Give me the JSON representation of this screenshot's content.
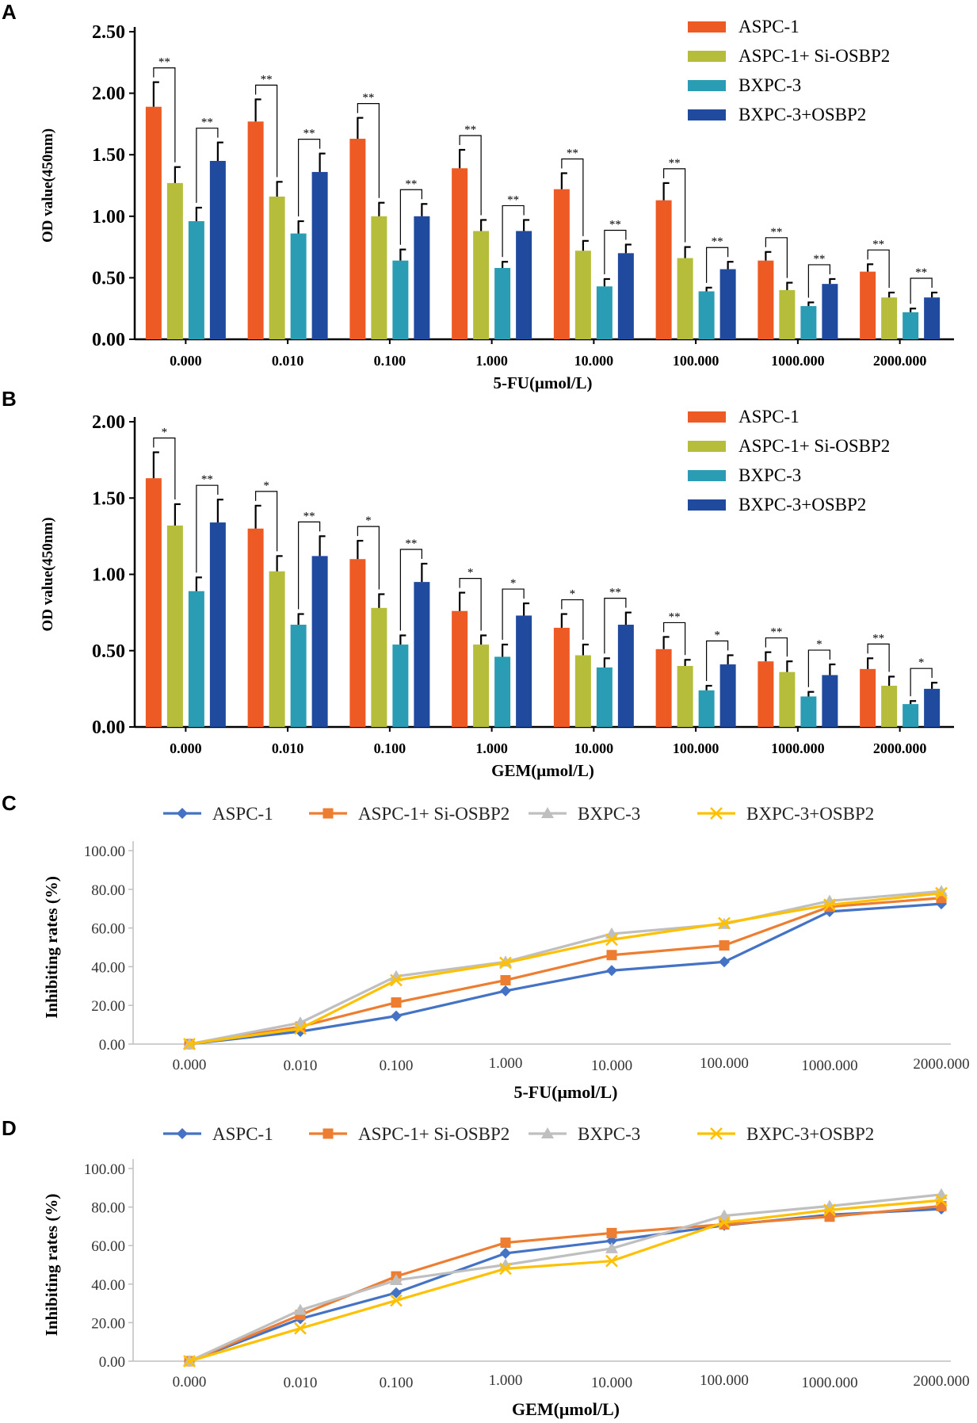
{
  "panels": [
    "A",
    "B",
    "C",
    "D"
  ],
  "colors": {
    "aspc": "#EE5A24",
    "aspc_si": "#B5BD3B",
    "bxpc": "#2A9DB4",
    "bxpc_osbp2": "#1F4A9E",
    "line_aspc": "#4472C4",
    "line_aspc_si": "#ED7D31",
    "line_bxpc": "#BFBFBF",
    "line_bxpc_osbp2": "#FFC000"
  },
  "chart_data": [
    {
      "panel": "A",
      "type": "bar",
      "title": "",
      "xlabel": "5-FU(μmol/L)",
      "ylabel": "OD value(450nm)",
      "ylim": [
        0,
        2.5
      ],
      "yticks": [
        "0.00",
        "0.50",
        "1.00",
        "1.50",
        "2.00",
        "2.50"
      ],
      "categories": [
        "0.000",
        "0.010",
        "0.100",
        "1.000",
        "10.000",
        "100.000",
        "1000.000",
        "2000.000"
      ],
      "series": [
        {
          "name": "ASPC-1",
          "values": [
            1.89,
            1.77,
            1.63,
            1.39,
            1.22,
            1.13,
            0.64,
            0.55
          ],
          "errors": [
            0.2,
            0.18,
            0.17,
            0.15,
            0.13,
            0.14,
            0.07,
            0.06
          ]
        },
        {
          "name": "ASPC-1+ Si-OSBP2",
          "values": [
            1.27,
            1.16,
            1.0,
            0.88,
            0.72,
            0.66,
            0.4,
            0.34
          ],
          "errors": [
            0.13,
            0.12,
            0.11,
            0.09,
            0.08,
            0.09,
            0.06,
            0.04
          ]
        },
        {
          "name": "BXPC-3",
          "values": [
            0.96,
            0.86,
            0.64,
            0.58,
            0.43,
            0.39,
            0.27,
            0.22
          ],
          "errors": [
            0.11,
            0.1,
            0.09,
            0.05,
            0.06,
            0.03,
            0.03,
            0.03
          ]
        },
        {
          "name": "BXPC-3+OSBP2",
          "values": [
            1.45,
            1.36,
            1.0,
            0.88,
            0.7,
            0.57,
            0.45,
            0.34
          ],
          "errors": [
            0.15,
            0.15,
            0.1,
            0.09,
            0.07,
            0.06,
            0.04,
            0.04
          ]
        }
      ],
      "significance": [
        {
          "left": "**",
          "right": "**"
        },
        {
          "left": "**",
          "right": "**"
        },
        {
          "left": "**",
          "right": "**"
        },
        {
          "left": "**",
          "right": "**"
        },
        {
          "left": "**",
          "right": "**"
        },
        {
          "left": "**",
          "right": "**"
        },
        {
          "left": "**",
          "right": "**"
        },
        {
          "left": "**",
          "right": "**"
        }
      ]
    },
    {
      "panel": "B",
      "type": "bar",
      "title": "",
      "xlabel": "GEM(μmol/L)",
      "ylabel": "OD value(450nm)",
      "ylim": [
        0,
        2.0
      ],
      "yticks": [
        "0.00",
        "0.50",
        "1.00",
        "1.50",
        "2.00"
      ],
      "categories": [
        "0.000",
        "0.010",
        "0.100",
        "1.000",
        "10.000",
        "100.000",
        "1000.000",
        "2000.000"
      ],
      "series": [
        {
          "name": "ASPC-1",
          "values": [
            1.63,
            1.3,
            1.1,
            0.76,
            0.65,
            0.51,
            0.43,
            0.38
          ],
          "errors": [
            0.17,
            0.15,
            0.12,
            0.12,
            0.09,
            0.08,
            0.06,
            0.07
          ]
        },
        {
          "name": "ASPC-1+ Si-OSBP2",
          "values": [
            1.32,
            1.02,
            0.78,
            0.54,
            0.47,
            0.4,
            0.36,
            0.27
          ],
          "errors": [
            0.14,
            0.1,
            0.09,
            0.06,
            0.07,
            0.04,
            0.07,
            0.06
          ]
        },
        {
          "name": "BXPC-3",
          "values": [
            0.89,
            0.67,
            0.54,
            0.46,
            0.39,
            0.24,
            0.2,
            0.15
          ],
          "errors": [
            0.09,
            0.07,
            0.06,
            0.08,
            0.06,
            0.03,
            0.03,
            0.02
          ]
        },
        {
          "name": "BXPC-3+OSBP2",
          "values": [
            1.34,
            1.12,
            0.95,
            0.73,
            0.67,
            0.41,
            0.34,
            0.25
          ],
          "errors": [
            0.15,
            0.13,
            0.12,
            0.08,
            0.08,
            0.06,
            0.07,
            0.04
          ]
        }
      ],
      "significance": [
        {
          "left": "*",
          "right": "**"
        },
        {
          "left": "*",
          "right": "**"
        },
        {
          "left": "*",
          "right": "**"
        },
        {
          "left": "*",
          "right": "*"
        },
        {
          "left": "*",
          "right": "**"
        },
        {
          "left": "**",
          "right": "*"
        },
        {
          "left": "**",
          "right": "*"
        },
        {
          "left": "**",
          "right": "*"
        }
      ]
    },
    {
      "panel": "C",
      "type": "line",
      "title": "",
      "xlabel": "5-FU(μmol/L)",
      "ylabel": "Inhibiting rates (%)",
      "ylim": [
        0,
        100
      ],
      "yticks": [
        "0.00",
        "20.00",
        "40.00",
        "60.00",
        "80.00",
        "100.00"
      ],
      "categories": [
        "0.000",
        "0.010",
        "0.100",
        "1.000",
        "10.000",
        "100.000",
        "1000.000",
        "2000.000"
      ],
      "series": [
        {
          "name": "ASPC-1",
          "marker": "diamond",
          "values": [
            0,
            6.5,
            14.5,
            27.5,
            38,
            42.5,
            68.5,
            72.5
          ]
        },
        {
          "name": "ASPC-1+ Si-OSBP2",
          "marker": "square",
          "values": [
            0,
            9,
            21.5,
            33,
            46,
            51,
            71,
            75.5
          ]
        },
        {
          "name": "BXPC-3",
          "marker": "triangle",
          "values": [
            0,
            11,
            35,
            42.5,
            57,
            62,
            74,
            79
          ]
        },
        {
          "name": "BXPC-3+OSBP2",
          "marker": "x",
          "values": [
            0,
            8,
            33,
            42,
            54,
            62.5,
            72,
            78
          ]
        }
      ]
    },
    {
      "panel": "D",
      "type": "line",
      "title": "",
      "xlabel": "GEM(μmol/L)",
      "ylabel": "Inhibiting rates (%)",
      "ylim": [
        0,
        100
      ],
      "yticks": [
        "0.00",
        "20.00",
        "40.00",
        "60.00",
        "80.00",
        "100.00"
      ],
      "categories": [
        "0.000",
        "0.010",
        "0.100",
        "1.000",
        "10.000",
        "100.000",
        "1000.000",
        "2000.000"
      ],
      "series": [
        {
          "name": "ASPC-1",
          "marker": "diamond",
          "values": [
            0,
            22,
            35.5,
            56,
            62.5,
            70.5,
            76,
            79
          ]
        },
        {
          "name": "ASPC-1+ Si-OSBP2",
          "marker": "square",
          "values": [
            0,
            24,
            44,
            61.5,
            66.5,
            71,
            75,
            80.5
          ]
        },
        {
          "name": "BXPC-3",
          "marker": "triangle",
          "values": [
            0,
            26.5,
            42,
            50,
            58.5,
            75.5,
            80.5,
            86.5
          ]
        },
        {
          "name": "BXPC-3+OSBP2",
          "marker": "x",
          "values": [
            0,
            17,
            31.5,
            48,
            52,
            72,
            78.5,
            83.5
          ]
        }
      ]
    }
  ]
}
